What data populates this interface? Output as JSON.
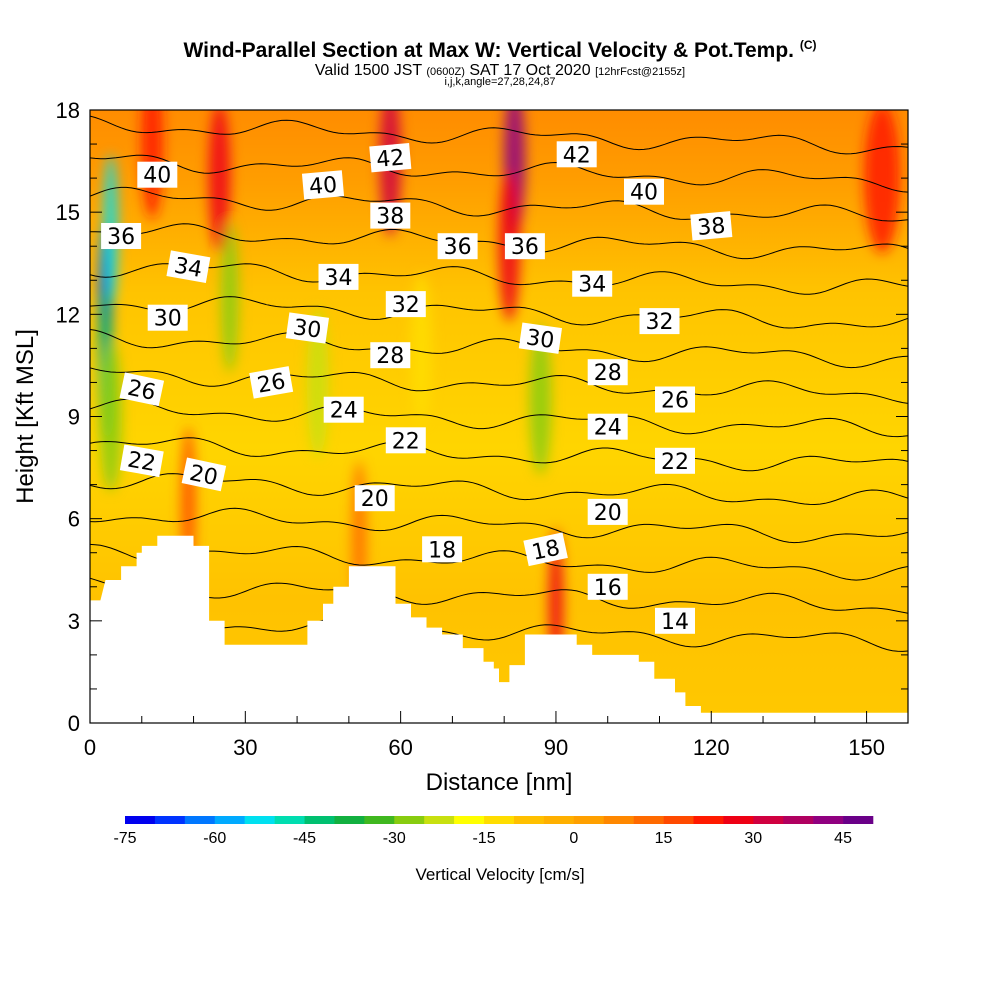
{
  "title": {
    "main": "Wind-Parallel Section at Max W: Vertical Velocity & Pot.Temp.",
    "copyright": "(C)",
    "valid_prefix": "Valid 1500 JST",
    "valid_utc": "(0600Z)",
    "valid_date": "SAT 17 Oct 2020",
    "forecast": "[12hrFcst@2155z]",
    "indices": "i,j,k,angle=27,28,24,87"
  },
  "chart_data": {
    "type": "heatmap",
    "xlabel": "Distance [nm]",
    "ylabel": "Height [Kft MSL]",
    "xlim": [
      0,
      158
    ],
    "ylim": [
      0,
      18
    ],
    "xticks": [
      0,
      30,
      60,
      90,
      120,
      150
    ],
    "yticks": [
      0,
      3,
      6,
      9,
      12,
      15,
      18
    ],
    "colorbar": {
      "title": "Vertical Velocity [cm/s]",
      "min": -75,
      "max": 50,
      "step": 5,
      "tick_values": [
        -75,
        -60,
        -45,
        -30,
        -15,
        0,
        15,
        30,
        45
      ],
      "colors": [
        "#0000ee",
        "#0033ff",
        "#0077ff",
        "#00aaff",
        "#00e0f0",
        "#00ddb0",
        "#00c070",
        "#12b040",
        "#40b820",
        "#88cc10",
        "#c8e010",
        "#ffff00",
        "#ffdd00",
        "#ffc000",
        "#ffb000",
        "#ffa000",
        "#ff8800",
        "#ff6a00",
        "#ff4a00",
        "#ff1a00",
        "#ee0015",
        "#d00040",
        "#b00060",
        "#900080",
        "#6a0088"
      ]
    },
    "terrain_kft": [
      [
        0,
        3.6
      ],
      [
        2,
        3.6
      ],
      [
        3,
        4.2
      ],
      [
        6,
        4.2
      ],
      [
        6,
        4.6
      ],
      [
        9,
        4.6
      ],
      [
        9,
        5.0
      ],
      [
        10,
        5.0
      ],
      [
        10,
        5.2
      ],
      [
        13,
        5.2
      ],
      [
        13,
        5.5
      ],
      [
        20,
        5.5
      ],
      [
        20,
        5.2
      ],
      [
        23,
        5.2
      ],
      [
        23,
        3.0
      ],
      [
        26,
        3.0
      ],
      [
        26,
        2.3
      ],
      [
        42,
        2.3
      ],
      [
        42,
        3.0
      ],
      [
        45,
        3.0
      ],
      [
        45,
        3.5
      ],
      [
        47,
        3.5
      ],
      [
        47,
        4.0
      ],
      [
        50,
        4.0
      ],
      [
        50,
        4.6
      ],
      [
        59,
        4.6
      ],
      [
        59,
        3.5
      ],
      [
        62,
        3.5
      ],
      [
        62,
        3.1
      ],
      [
        65,
        3.1
      ],
      [
        65,
        2.8
      ],
      [
        68,
        2.8
      ],
      [
        68,
        2.6
      ],
      [
        72,
        2.6
      ],
      [
        72,
        2.2
      ],
      [
        76,
        2.2
      ],
      [
        76,
        1.8
      ],
      [
        78,
        1.8
      ],
      [
        78,
        1.6
      ],
      [
        79,
        1.6
      ],
      [
        79,
        1.2
      ],
      [
        81,
        1.2
      ],
      [
        81,
        1.7
      ],
      [
        84,
        1.7
      ],
      [
        84,
        2.6
      ],
      [
        94,
        2.6
      ],
      [
        94,
        2.3
      ],
      [
        97,
        2.3
      ],
      [
        97,
        2.0
      ],
      [
        106,
        2.0
      ],
      [
        106,
        1.8
      ],
      [
        109,
        1.8
      ],
      [
        109,
        1.3
      ],
      [
        113,
        1.3
      ],
      [
        113,
        0.9
      ],
      [
        115,
        0.9
      ],
      [
        115,
        0.5
      ],
      [
        118,
        0.5
      ],
      [
        118,
        0.3
      ],
      [
        158,
        0.3
      ]
    ],
    "vertical_velocity_cells": [
      {
        "x": 3,
        "y": 12.5,
        "w": 0.8,
        "v": -72
      },
      {
        "x": 4,
        "y": 14.5,
        "w": 1.0,
        "v": -55
      },
      {
        "x": 3,
        "y": 10.5,
        "w": 1.0,
        "v": -45
      },
      {
        "x": 4,
        "y": 9.0,
        "w": 1.5,
        "v": -30
      },
      {
        "x": 27,
        "y": 12.5,
        "w": 1.2,
        "v": -28
      },
      {
        "x": 44,
        "y": 10.0,
        "w": 1.5,
        "v": -25
      },
      {
        "x": 87,
        "y": 9.5,
        "w": 1.5,
        "v": -28
      },
      {
        "x": 64,
        "y": 11.0,
        "w": 1.5,
        "v": -15
      },
      {
        "x": 25,
        "y": 16.0,
        "w": 1.5,
        "v": 28
      },
      {
        "x": 12,
        "y": 17.0,
        "w": 1.5,
        "v": 22
      },
      {
        "x": 58,
        "y": 16.5,
        "w": 1.5,
        "v": 30
      },
      {
        "x": 82,
        "y": 16.5,
        "w": 1.5,
        "v": 42
      },
      {
        "x": 81,
        "y": 14.0,
        "w": 1.5,
        "v": 25
      },
      {
        "x": 153,
        "y": 16.0,
        "w": 2.5,
        "v": 20
      },
      {
        "x": 90,
        "y": 3.5,
        "w": 1.0,
        "v": 25
      },
      {
        "x": 19,
        "y": 6.5,
        "w": 1.0,
        "v": 18
      },
      {
        "x": 52,
        "y": 5.5,
        "w": 1.0,
        "v": 12
      }
    ],
    "theta_isentropes_C": [
      14,
      16,
      18,
      20,
      22,
      24,
      26,
      28,
      30,
      32,
      34,
      36,
      38,
      40,
      42
    ],
    "contour_labels": [
      {
        "text": "40",
        "x": 13,
        "y": 16.1,
        "angle": 0
      },
      {
        "text": "42",
        "x": 58,
        "y": 16.6,
        "angle": -5
      },
      {
        "text": "42",
        "x": 94,
        "y": 16.7,
        "angle": 0
      },
      {
        "text": "40",
        "x": 45,
        "y": 15.8,
        "angle": -5
      },
      {
        "text": "40",
        "x": 107,
        "y": 15.6,
        "angle": 0
      },
      {
        "text": "38",
        "x": 58,
        "y": 14.9,
        "angle": 0
      },
      {
        "text": "38",
        "x": 120,
        "y": 14.6,
        "angle": -5
      },
      {
        "text": "36",
        "x": 6,
        "y": 14.3,
        "angle": 0
      },
      {
        "text": "36",
        "x": 71,
        "y": 14.0,
        "angle": 0
      },
      {
        "text": "36",
        "x": 84,
        "y": 14.0,
        "angle": 0
      },
      {
        "text": "34",
        "x": 19,
        "y": 13.4,
        "angle": 10
      },
      {
        "text": "34",
        "x": 48,
        "y": 13.1,
        "angle": 0
      },
      {
        "text": "34",
        "x": 97,
        "y": 12.9,
        "angle": 0
      },
      {
        "text": "32",
        "x": 61,
        "y": 12.3,
        "angle": 0
      },
      {
        "text": "32",
        "x": 110,
        "y": 11.8,
        "angle": 0
      },
      {
        "text": "30",
        "x": 15,
        "y": 11.9,
        "angle": 0
      },
      {
        "text": "30",
        "x": 42,
        "y": 11.6,
        "angle": 8
      },
      {
        "text": "30",
        "x": 87,
        "y": 11.3,
        "angle": 8
      },
      {
        "text": "28",
        "x": 58,
        "y": 10.8,
        "angle": 0
      },
      {
        "text": "28",
        "x": 100,
        "y": 10.3,
        "angle": 0
      },
      {
        "text": "26",
        "x": 10,
        "y": 9.8,
        "angle": 12
      },
      {
        "text": "26",
        "x": 35,
        "y": 10.0,
        "angle": -10
      },
      {
        "text": "26",
        "x": 113,
        "y": 9.5,
        "angle": 0
      },
      {
        "text": "24",
        "x": 49,
        "y": 9.2,
        "angle": 0
      },
      {
        "text": "24",
        "x": 100,
        "y": 8.7,
        "angle": 0
      },
      {
        "text": "22",
        "x": 10,
        "y": 7.7,
        "angle": 10
      },
      {
        "text": "22",
        "x": 61,
        "y": 8.3,
        "angle": 0
      },
      {
        "text": "22",
        "x": 113,
        "y": 7.7,
        "angle": 0
      },
      {
        "text": "20",
        "x": 22,
        "y": 7.3,
        "angle": 12
      },
      {
        "text": "20",
        "x": 55,
        "y": 6.6,
        "angle": 0
      },
      {
        "text": "20",
        "x": 100,
        "y": 6.2,
        "angle": 0
      },
      {
        "text": "18",
        "x": 68,
        "y": 5.1,
        "angle": 0
      },
      {
        "text": "18",
        "x": 88,
        "y": 5.1,
        "angle": -12
      },
      {
        "text": "16",
        "x": 100,
        "y": 4.0,
        "angle": 0
      },
      {
        "text": "14",
        "x": 113,
        "y": 3.0,
        "angle": 0
      }
    ]
  }
}
